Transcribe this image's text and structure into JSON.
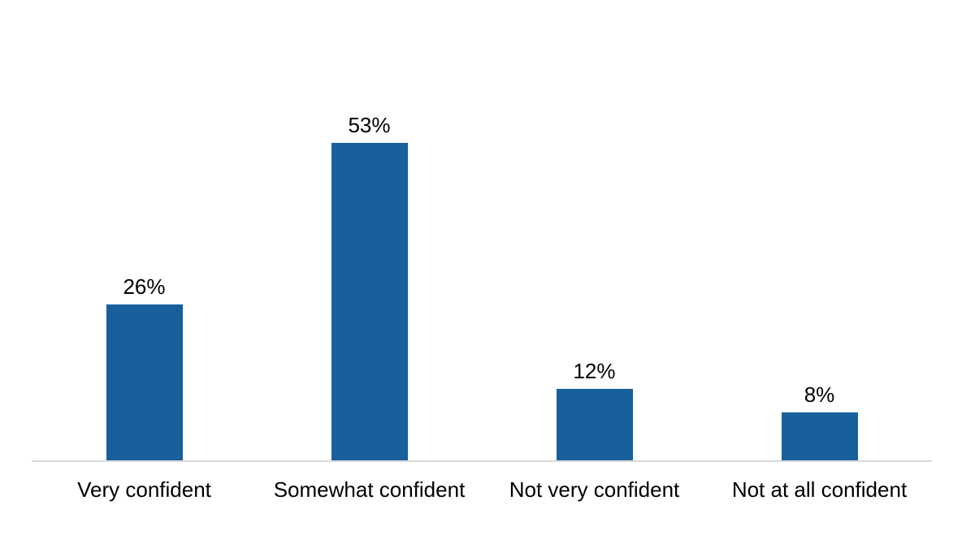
{
  "chart_data": {
    "type": "bar",
    "title": "",
    "xlabel": "",
    "ylabel": "",
    "categories": [
      "Very confident",
      "Somewhat confident",
      "Not very confident",
      "Not at all confident"
    ],
    "values": [
      26,
      53,
      12,
      8
    ],
    "data_labels": [
      "26%",
      "53%",
      "12%",
      "8%"
    ],
    "ylim": [
      0,
      60
    ],
    "grid": false,
    "legend": false,
    "y_axis_visible": false,
    "bar_color": "#17609C",
    "axis_line_color": "#D9D9D9",
    "label_color": "#000000",
    "background_color": "#FFFFFF"
  }
}
